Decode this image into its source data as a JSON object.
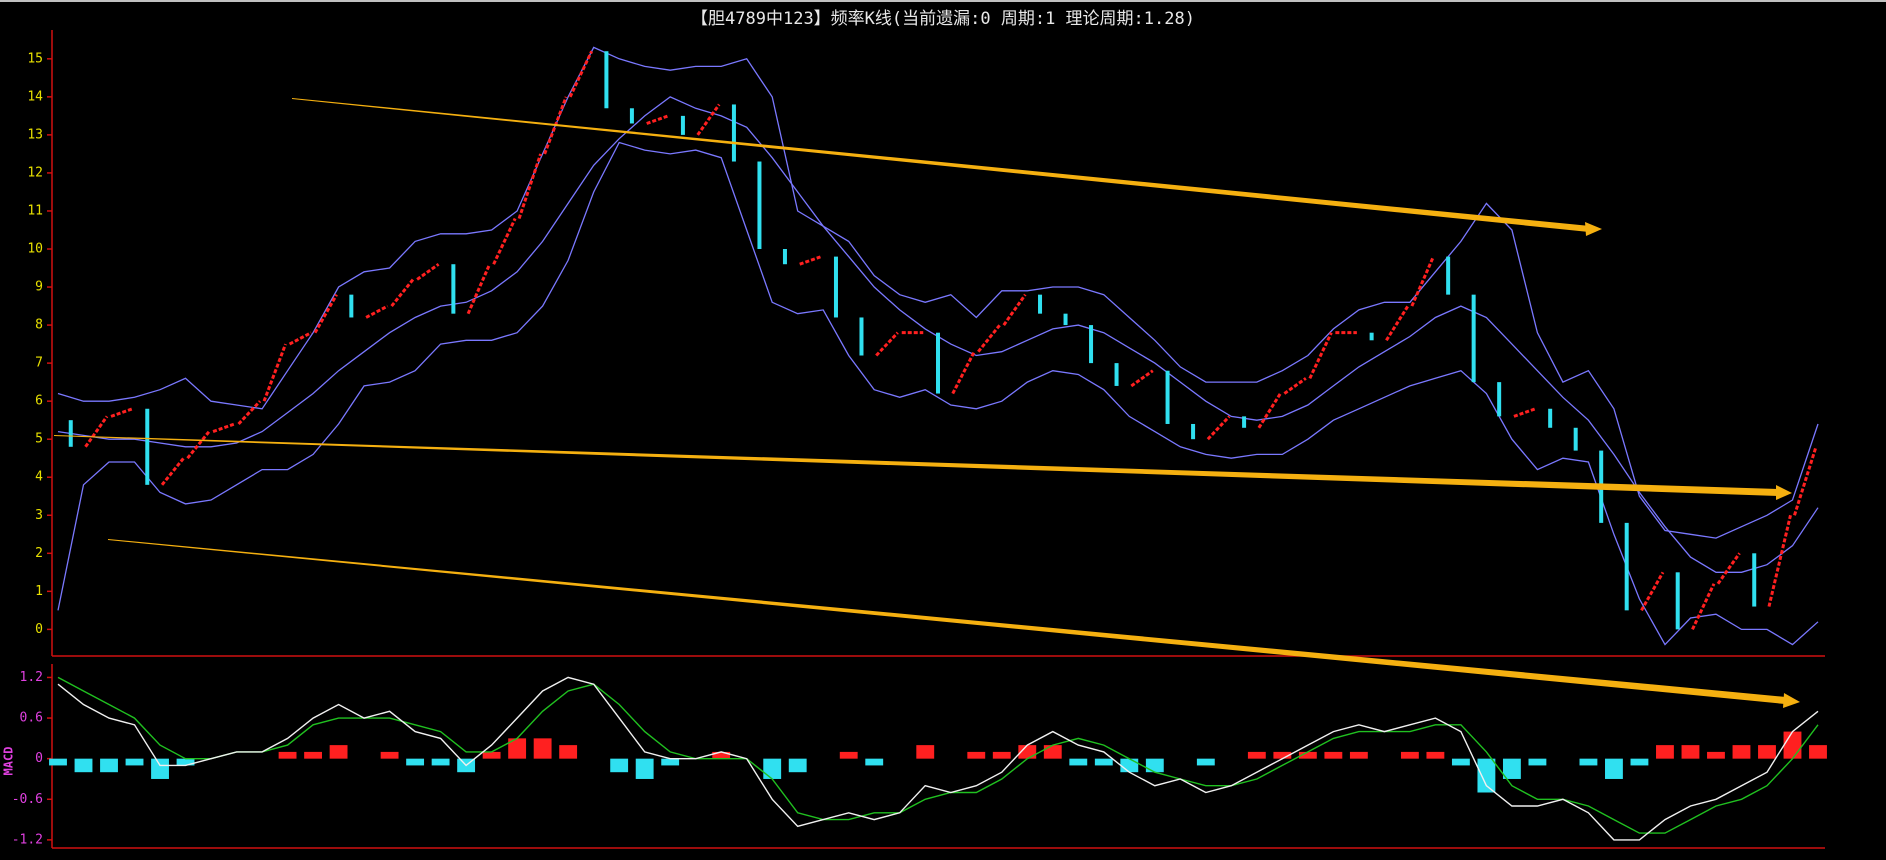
{
  "chart_data": [
    {
      "type": "kline",
      "title": "【胆4789中123】频率K线(当前遗漏:0 周期:1 理论周期:1.28)",
      "ylim": [
        -0.7,
        15.6
      ],
      "yticks": [
        0,
        1,
        2,
        3,
        4,
        5,
        6,
        7,
        8,
        9,
        10,
        11,
        12,
        13,
        14,
        15
      ],
      "up_color": "#ff2020",
      "down_color": "#30e0f0",
      "band_color": "#7a78ff",
      "values": [
        5.5,
        4.8,
        5.6,
        5.8,
        3.8,
        4.5,
        5.2,
        5.4,
        6.0,
        7.5,
        7.8,
        8.8,
        8.2,
        8.5,
        9.2,
        9.6,
        8.3,
        9.6,
        10.8,
        12.5,
        14.0,
        15.2,
        13.7,
        13.3,
        13.5,
        13.0,
        13.8,
        12.3,
        10.0,
        9.6,
        9.8,
        8.2,
        7.2,
        7.8,
        7.8,
        6.2,
        7.3,
        8.0,
        8.8,
        8.3,
        8.0,
        7.0,
        6.4,
        6.8,
        5.4,
        5.0,
        5.6,
        5.3,
        6.2,
        6.6,
        7.8,
        7.8,
        7.6,
        8.5,
        9.8,
        8.8,
        6.5,
        5.6,
        5.8,
        5.3,
        4.7,
        2.8,
        0.5,
        1.5,
        0.0,
        1.2,
        2.0,
        0.6,
        3.0,
        4.8
      ],
      "upper": [
        6.2,
        6.0,
        6.0,
        6.1,
        6.3,
        6.6,
        6.0,
        5.9,
        5.8,
        6.8,
        7.8,
        9.0,
        9.4,
        9.5,
        10.2,
        10.4,
        10.4,
        10.5,
        11.0,
        12.5,
        14.0,
        15.3,
        15.0,
        14.8,
        14.7,
        14.8,
        14.8,
        15.0,
        14.0,
        11.0,
        10.6,
        10.2,
        9.3,
        8.8,
        8.6,
        8.8,
        8.2,
        8.9,
        8.9,
        9.0,
        9.0,
        8.8,
        8.2,
        7.6,
        6.9,
        6.5,
        6.5,
        6.5,
        6.8,
        7.2,
        7.9,
        8.4,
        8.6,
        8.6,
        9.4,
        10.2,
        11.2,
        10.5,
        7.8,
        6.5,
        6.8,
        5.8,
        3.5,
        2.6,
        2.5,
        2.4,
        2.7,
        3.0,
        3.4,
        5.4
      ],
      "mid": [
        5.2,
        5.1,
        5.0,
        5.0,
        4.9,
        4.8,
        4.8,
        4.9,
        5.2,
        5.7,
        6.2,
        6.8,
        7.3,
        7.8,
        8.2,
        8.5,
        8.6,
        8.9,
        9.4,
        10.2,
        11.2,
        12.2,
        12.9,
        13.5,
        14.0,
        13.7,
        13.5,
        13.2,
        12.4,
        11.5,
        10.6,
        9.8,
        9.0,
        8.4,
        7.9,
        7.5,
        7.2,
        7.3,
        7.6,
        7.9,
        8.0,
        7.8,
        7.4,
        7.0,
        6.5,
        6.0,
        5.6,
        5.5,
        5.6,
        5.9,
        6.4,
        6.9,
        7.3,
        7.7,
        8.2,
        8.5,
        8.2,
        7.5,
        6.8,
        6.1,
        5.5,
        4.6,
        3.6,
        2.7,
        1.9,
        1.5,
        1.5,
        1.7,
        2.2,
        3.2
      ],
      "lower": [
        0.5,
        3.8,
        4.4,
        4.4,
        3.6,
        3.3,
        3.4,
        3.8,
        4.2,
        4.2,
        4.6,
        5.4,
        6.4,
        6.5,
        6.8,
        7.5,
        7.6,
        7.6,
        7.8,
        8.5,
        9.7,
        11.5,
        12.8,
        12.6,
        12.5,
        12.6,
        12.4,
        10.5,
        8.6,
        8.3,
        8.4,
        7.2,
        6.3,
        6.1,
        6.3,
        5.9,
        5.8,
        6.0,
        6.5,
        6.8,
        6.7,
        6.3,
        5.6,
        5.2,
        4.8,
        4.6,
        4.5,
        4.6,
        4.6,
        5.0,
        5.5,
        5.8,
        6.1,
        6.4,
        6.6,
        6.8,
        6.2,
        5.0,
        4.2,
        4.5,
        4.4,
        2.5,
        0.8,
        -0.4,
        0.3,
        0.4,
        0.0,
        0.0,
        -0.4,
        0.2
      ]
    },
    {
      "type": "macd",
      "y_label": "MACD",
      "ylim": [
        -1.32,
        1.31
      ],
      "yticks": [
        1.2,
        0.6,
        0,
        -0.6,
        -1.2
      ],
      "dif_color": "#f0f0f0",
      "dea_color": "#20c020",
      "up_color": "#ff2020",
      "down_color": "#30e0f0",
      "dif": [
        1.1,
        0.8,
        0.6,
        0.5,
        -0.1,
        -0.1,
        0.0,
        0.1,
        0.1,
        0.3,
        0.6,
        0.8,
        0.6,
        0.7,
        0.4,
        0.3,
        -0.1,
        0.2,
        0.6,
        1.0,
        1.2,
        1.1,
        0.6,
        0.1,
        0.0,
        0.0,
        0.1,
        0.0,
        -0.6,
        -1.0,
        -0.9,
        -0.8,
        -0.9,
        -0.8,
        -0.4,
        -0.5,
        -0.4,
        -0.2,
        0.2,
        0.4,
        0.2,
        0.1,
        -0.2,
        -0.4,
        -0.3,
        -0.5,
        -0.4,
        -0.2,
        0.0,
        0.2,
        0.4,
        0.5,
        0.4,
        0.5,
        0.6,
        0.4,
        -0.4,
        -0.7,
        -0.7,
        -0.6,
        -0.8,
        -1.2,
        -1.2,
        -0.9,
        -0.7,
        -0.6,
        -0.4,
        -0.2,
        0.4,
        0.7
      ],
      "dea": [
        1.2,
        1.0,
        0.8,
        0.6,
        0.2,
        0.0,
        0.0,
        0.1,
        0.1,
        0.2,
        0.5,
        0.6,
        0.6,
        0.6,
        0.5,
        0.4,
        0.1,
        0.1,
        0.3,
        0.7,
        1.0,
        1.1,
        0.8,
        0.4,
        0.1,
        0.0,
        0.0,
        0.0,
        -0.3,
        -0.8,
        -0.9,
        -0.9,
        -0.8,
        -0.8,
        -0.6,
        -0.5,
        -0.5,
        -0.3,
        0.0,
        0.2,
        0.3,
        0.2,
        0.0,
        -0.2,
        -0.3,
        -0.4,
        -0.4,
        -0.3,
        -0.1,
        0.1,
        0.3,
        0.4,
        0.4,
        0.4,
        0.5,
        0.5,
        0.1,
        -0.4,
        -0.6,
        -0.6,
        -0.7,
        -0.9,
        -1.1,
        -1.1,
        -0.9,
        -0.7,
        -0.6,
        -0.4,
        0.0,
        0.5
      ],
      "hist": [
        -0.1,
        -0.2,
        -0.2,
        -0.1,
        -0.3,
        -0.1,
        0,
        0,
        0,
        0.1,
        0.1,
        0.2,
        0,
        0.1,
        -0.1,
        -0.1,
        -0.2,
        0.1,
        0.3,
        0.3,
        0.2,
        0,
        -0.2,
        -0.3,
        -0.1,
        0,
        0.1,
        0,
        -0.3,
        -0.2,
        0,
        0.1,
        -0.1,
        0,
        0.2,
        0,
        0.1,
        0.1,
        0.2,
        0.2,
        -0.1,
        -0.1,
        -0.2,
        -0.2,
        0,
        -0.1,
        0,
        0.1,
        0.1,
        0.1,
        0.1,
        0.1,
        0,
        0.1,
        0.1,
        -0.1,
        -0.5,
        -0.3,
        -0.1,
        0,
        -0.1,
        -0.3,
        -0.1,
        0.2,
        0.2,
        0.1,
        0.2,
        0.2,
        0.4,
        0.2
      ]
    }
  ]
}
